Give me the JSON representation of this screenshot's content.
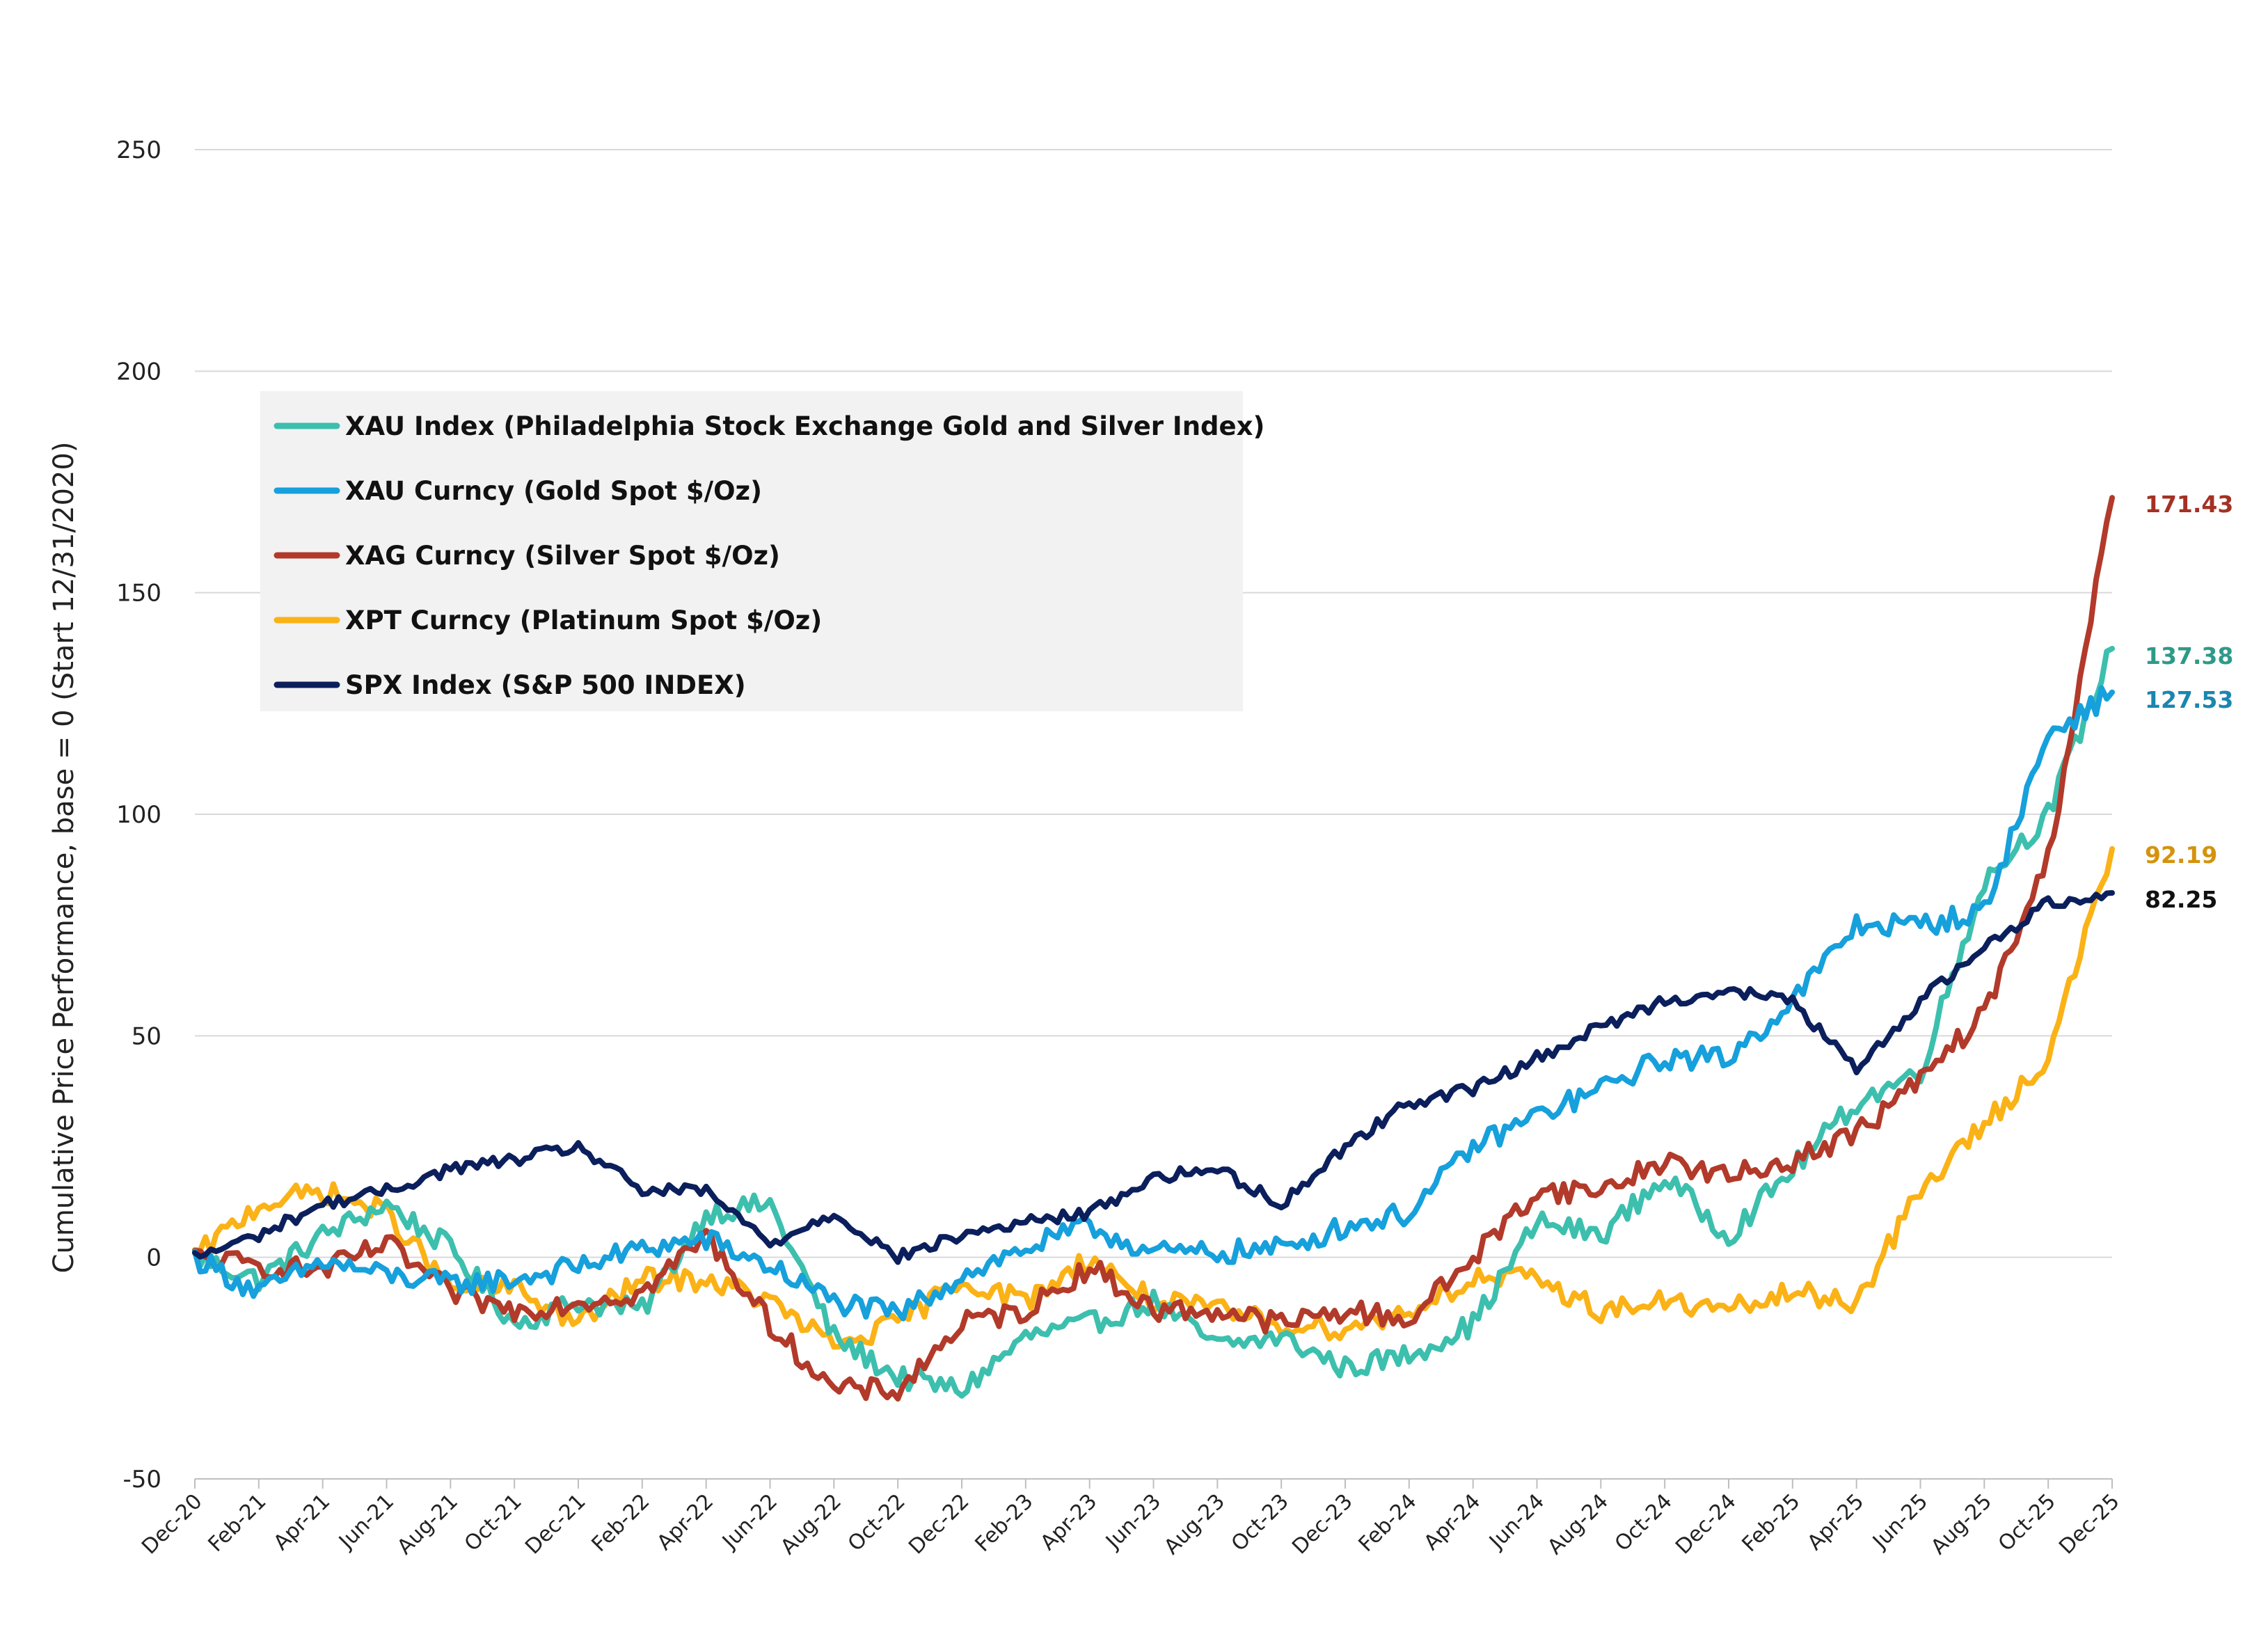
{
  "chart_data": {
    "type": "line",
    "ylabel": "Cumulative Price Performance, base = 0 (Start 12/31/2020)",
    "ylim": [
      -50,
      250
    ],
    "yticks": [
      -50,
      0,
      50,
      100,
      150,
      200,
      250
    ],
    "grid": true,
    "legend_position": "upper-left",
    "x_tick_labels": [
      "Dec-20",
      "Feb-21",
      "Apr-21",
      "Jun-21",
      "Aug-21",
      "Oct-21",
      "Dec-21",
      "Feb-22",
      "Apr-22",
      "Jun-22",
      "Aug-22",
      "Oct-22",
      "Dec-22",
      "Feb-23",
      "Apr-23",
      "Jun-23",
      "Aug-23",
      "Oct-23",
      "Dec-23",
      "Feb-24",
      "Apr-24",
      "Jun-24",
      "Aug-24",
      "Oct-24",
      "Dec-24",
      "Feb-25",
      "Apr-25",
      "Jun-25",
      "Aug-25",
      "Oct-25",
      "Dec-25"
    ],
    "series": [
      {
        "name": "XAU Index (Philadelphia Stock Exchange Gold and Silver Index)",
        "color": "#3dbfae",
        "label_color": "#2e9a88",
        "end_label": "137.38",
        "values": [
          0,
          -5,
          5,
          12,
          2,
          -15,
          -10,
          -12,
          10,
          12,
          -18,
          -27,
          -30,
          -18,
          -15,
          -10,
          -20,
          -18,
          -25,
          -22,
          -15,
          8,
          5,
          18,
          5,
          20,
          35,
          42,
          85,
          100,
          137.38
        ]
      },
      {
        "name": "XAU Curncy (Gold Spot   $/Oz)",
        "color": "#16a0dc",
        "label_color": "#1a86b0",
        "end_label": "127.53",
        "values": [
          0,
          -8,
          -1,
          -4,
          -6,
          -5,
          -2,
          2,
          4,
          -2,
          -10,
          -13,
          -4,
          2,
          7,
          1,
          1,
          2,
          7,
          10,
          25,
          32,
          38,
          45,
          45,
          58,
          75,
          75,
          78,
          118,
          127.53
        ]
      },
      {
        "name": "XAG Curncy (Silver Spot  $/Oz)",
        "color": "#b23a2a",
        "label_color": "#a33224",
        "end_label": "171.43",
        "values": [
          0,
          -2,
          -3,
          3,
          -8,
          -12,
          -10,
          -8,
          5,
          -15,
          -30,
          -30,
          -15,
          -12,
          -2,
          -12,
          -12,
          -15,
          -12,
          -14,
          0,
          15,
          15,
          22,
          18,
          22,
          28,
          40,
          55,
          90,
          171.43
        ]
      },
      {
        "name": "XPT Curncy (Platinum Spot  $/Oz)",
        "color": "#fbb216",
        "label_color": "#d4930e",
        "end_label": "92.19",
        "values": [
          0,
          12,
          15,
          10,
          -7,
          -7,
          -15,
          -5,
          -5,
          -10,
          -20,
          -15,
          -5,
          -10,
          0,
          -10,
          -12,
          -15,
          -16,
          -12,
          -5,
          -5,
          -12,
          -10,
          -12,
          -8,
          -10,
          15,
          30,
          45,
          92.19
        ]
      },
      {
        "name": "SPX Index (S&P 500 INDEX)",
        "color": "#0b1f5c",
        "label_color": "#111111",
        "end_label": "82.25",
        "values": [
          0,
          5,
          12,
          15,
          20,
          22,
          25,
          15,
          15,
          3,
          10,
          0,
          5,
          8,
          10,
          18,
          20,
          12,
          25,
          35,
          38,
          45,
          52,
          58,
          60,
          58,
          42,
          58,
          70,
          80,
          82.25
        ]
      }
    ]
  }
}
